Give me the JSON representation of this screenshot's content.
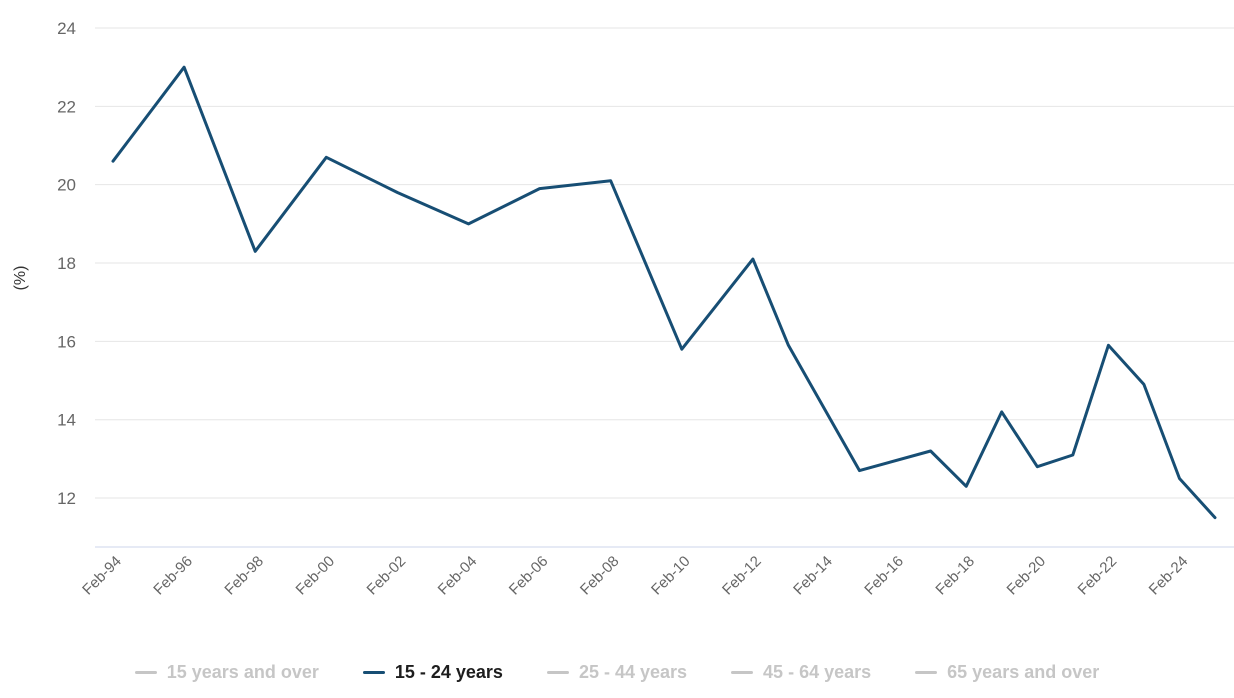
{
  "chart_data": {
    "type": "line",
    "title": "",
    "ylabel": "(%)",
    "ylim": [
      10.8,
      24
    ],
    "yticks": [
      12,
      14,
      16,
      18,
      20,
      22,
      24
    ],
    "xtick_labels": [
      "Feb-94",
      "Feb-96",
      "Feb-98",
      "Feb-00",
      "Feb-02",
      "Feb-04",
      "Feb-06",
      "Feb-08",
      "Feb-10",
      "Feb-12",
      "Feb-14",
      "Feb-16",
      "Feb-18",
      "Feb-20",
      "Feb-22",
      "Feb-24"
    ],
    "grid": true,
    "legend_position": "bottom",
    "series": [
      {
        "name": "15 - 24 years",
        "color": "#174e74",
        "visible": true,
        "points": [
          [
            1994,
            20.6
          ],
          [
            1996,
            23.0
          ],
          [
            1998,
            18.3
          ],
          [
            2000,
            20.7
          ],
          [
            2002,
            19.8
          ],
          [
            2004,
            19.0
          ],
          [
            2006,
            19.9
          ],
          [
            2008,
            20.1
          ],
          [
            2010,
            15.8
          ],
          [
            2012,
            18.1
          ],
          [
            2013,
            15.9
          ],
          [
            2015,
            12.7
          ],
          [
            2017,
            13.2
          ],
          [
            2018,
            12.3
          ],
          [
            2019,
            14.2
          ],
          [
            2020,
            12.8
          ],
          [
            2021,
            13.1
          ],
          [
            2022,
            15.9
          ],
          [
            2023,
            14.9
          ],
          [
            2024,
            12.5
          ],
          [
            2025,
            11.5
          ]
        ]
      }
    ],
    "legend": [
      {
        "label": "15 years and over",
        "active": false
      },
      {
        "label": "15 - 24 years",
        "active": true
      },
      {
        "label": "25 - 44 years",
        "active": false
      },
      {
        "label": "45 - 64 years",
        "active": false
      },
      {
        "label": "65 years and over",
        "active": false
      }
    ],
    "colors": {
      "line": "#174e74",
      "grid": "#e6e6e6",
      "axis_line": "#ccd6eb",
      "tick_label": "#666666",
      "axis_title": "#333333",
      "legend_inactive": "#c6c6c6",
      "legend_active_text": "#1d1d1d"
    }
  }
}
